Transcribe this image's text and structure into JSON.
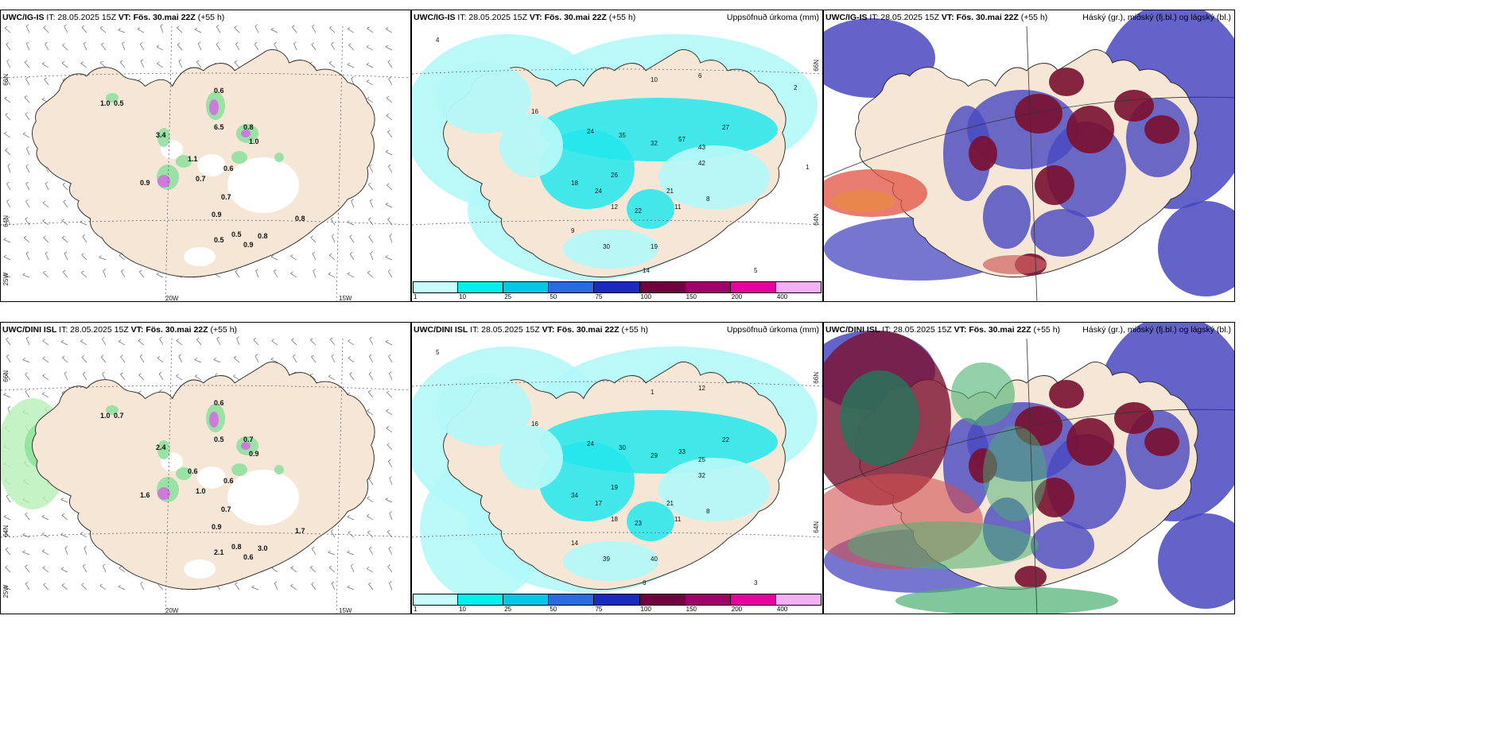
{
  "panels": [
    {
      "id": "p1",
      "model": "UWC/IG-IS",
      "issued": "IT: 28.05.2025 15Z",
      "valid": "VT: Fös. 30.mai 22Z",
      "lead": "(+55 h)",
      "title": ""
    },
    {
      "id": "p2",
      "model": "UWC/IG-IS",
      "issued": "IT: 28.05.2025 15Z",
      "valid": "VT: Fös. 30.mai 22Z",
      "lead": "(+55 h)",
      "title": "Uppsöfnuð úrkoma (mm)"
    },
    {
      "id": "p3",
      "model": "UWC/IG-IS",
      "issued": "IT: 28.05.2025 15Z",
      "valid": "VT: Fös. 30.mai 22Z",
      "lead": "(+55 h)",
      "title": "Háský (gr.), miðský (fj.bl.) og lágský (bl.)"
    },
    {
      "id": "p4",
      "model": "UWC/DINI ISL",
      "issued": "IT: 28.05.2025 15Z",
      "valid": "VT: Fös. 30.mai 22Z",
      "lead": "(+55 h)",
      "title": ""
    },
    {
      "id": "p5",
      "model": "UWC/DINI ISL",
      "issued": "IT: 28.05.2025 15Z",
      "valid": "VT: Fös. 30.mai 22Z",
      "lead": "(+55 h)",
      "title": "Uppsöfnuð úrkoma (mm)"
    },
    {
      "id": "p6",
      "model": "UWC/DINI ISL",
      "issued": "IT: 28.05.2025 15Z",
      "valid": "VT: Fös. 30.mai 22Z",
      "lead": "(+55 h)",
      "title": "Háský (gr.), miðský (fj.bl.) og lágský (bl.)"
    }
  ],
  "grid_labels": {
    "lat66": "66N",
    "lat64": "64N",
    "lon25": "25W",
    "lon20": "20W",
    "lon15": "15W"
  },
  "legend": {
    "levels": [
      "1",
      "10",
      "25",
      "50",
      "75",
      "100",
      "150",
      "200",
      "400"
    ],
    "colors": [
      "#c8fcfc",
      "#00f0f0",
      "#00c8e8",
      "#2a6ae0",
      "#1a2ac0",
      "#700040",
      "#a0006a",
      "#e800a0",
      "#f4b0f4"
    ]
  },
  "colors": {
    "land": "#f5e6d6",
    "precip_light": "#b4f8f8",
    "precip_mid": "#22e6ec",
    "high_cloud": "#7a1030",
    "mid_cloud": "#4848c0",
    "low_cloud": "#48b070",
    "coast": "#222222"
  },
  "map_labels": {
    "p1": [
      "0.6",
      "1.0",
      "0.5",
      "1.1",
      "0.8",
      "1.0",
      "0.6",
      "0.7",
      "0.7",
      "0.9",
      "0.8",
      "0.5",
      "0.5",
      "0.9",
      "0.8",
      "6.5",
      "3.4",
      "0.9"
    ],
    "p2": [
      "4",
      "16",
      "24",
      "35",
      "57",
      "43",
      "32",
      "27",
      "42",
      "18",
      "26",
      "24",
      "12",
      "22",
      "11",
      "8",
      "30",
      "19",
      "21",
      "9",
      "14",
      "5",
      "10",
      "6",
      "2",
      "1"
    ],
    "p4": [
      "0.6",
      "1.0",
      "0.7",
      "0.6",
      "0.7",
      "0.9",
      "0.6",
      "1.0",
      "0.7",
      "0.9",
      "1.7",
      "2.1",
      "0.8",
      "0.6",
      "3.0",
      "0.5",
      "2.4",
      "1.6"
    ],
    "p5": [
      "5",
      "16",
      "24",
      "30",
      "33",
      "25",
      "29",
      "22",
      "32",
      "34",
      "19",
      "17",
      "18",
      "23",
      "11",
      "8",
      "39",
      "40",
      "21",
      "14",
      "6",
      "3",
      "1",
      "12"
    ]
  }
}
